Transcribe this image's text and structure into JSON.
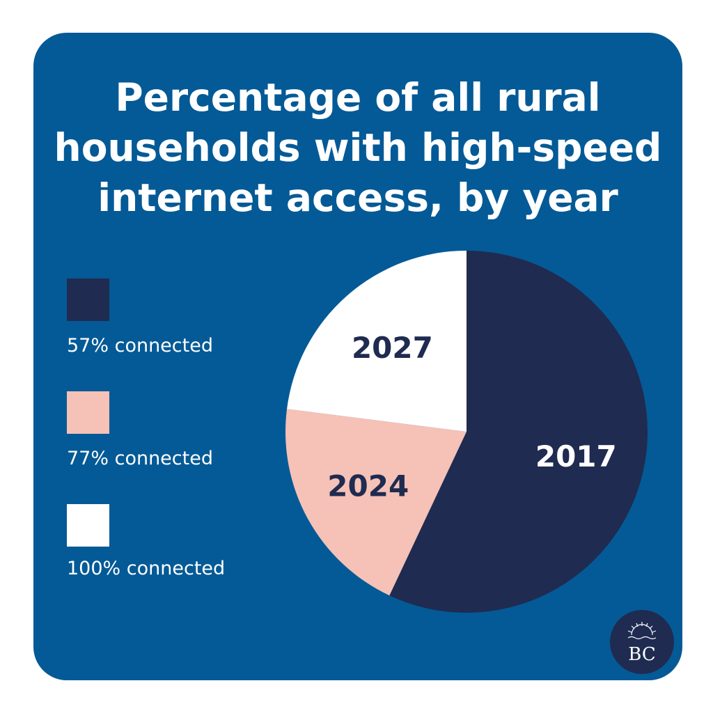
{
  "title": "Percentage of all rural\nhouseholds with high-speed\ninternet access, by year",
  "colors": {
    "background": "#045a96",
    "navy": "#1f2b50",
    "pink": "#f6c1b6",
    "white": "#ffffff"
  },
  "chart_data": {
    "type": "pie",
    "title": "Percentage of all rural households with high-speed internet access, by year",
    "slices": [
      {
        "label": "2017",
        "value": 57,
        "legend": "57% connected",
        "color": "#1f2b50",
        "label_color": "#ffffff"
      },
      {
        "label": "2024",
        "value": 20,
        "legend": "77% connected",
        "color": "#f6c1b6",
        "label_color": "#1f2b50"
      },
      {
        "label": "2027",
        "value": 23,
        "legend": "100% connected",
        "color": "#ffffff",
        "label_color": "#1f2b50"
      }
    ],
    "legend_position": "left"
  },
  "logo": {
    "text": "BC",
    "icon": "sun-over-water-icon"
  }
}
